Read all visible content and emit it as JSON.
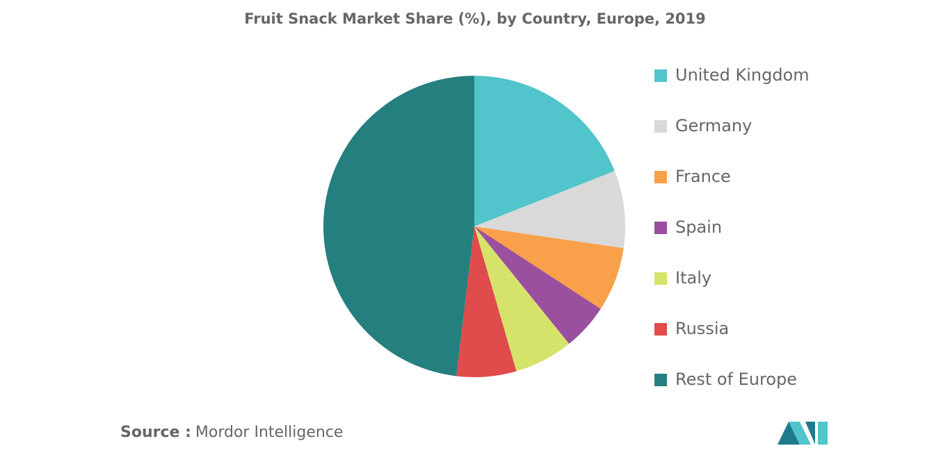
{
  "chart_data": {
    "type": "pie",
    "title": "Fruit Snack Market Share (%), by Country, Europe, 2019",
    "categories": [
      "United Kingdom",
      "Germany",
      "France",
      "Spain",
      "Italy",
      "Russia",
      "Rest of Europe"
    ],
    "values": [
      19,
      8.3,
      6.9,
      5,
      6.3,
      6.4,
      48.1
    ],
    "colors": [
      "#52c4cb",
      "#d9d9d9",
      "#f9a04a",
      "#9b4f9f",
      "#d6e36a",
      "#e04b4b",
      "#267f7f"
    ],
    "legend": "right"
  },
  "footer": {
    "source_label": "Source :",
    "source": "Mordor Intelligence"
  }
}
